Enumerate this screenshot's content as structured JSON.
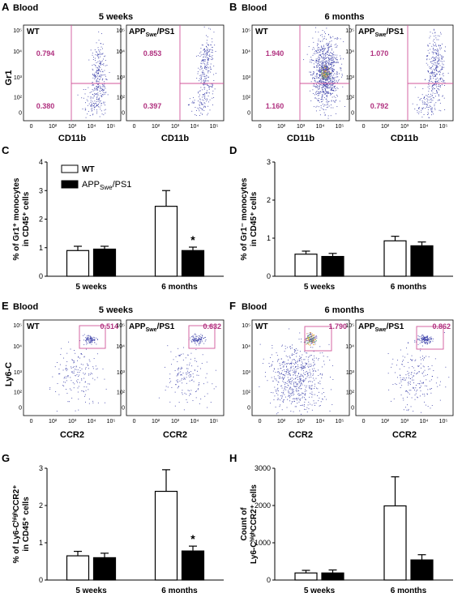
{
  "panels": {
    "A": {
      "letter": "A",
      "tissue": "Blood",
      "age": "5 weeks"
    },
    "B": {
      "letter": "B",
      "tissue": "Blood",
      "age": "6 months"
    },
    "C": {
      "letter": "C"
    },
    "D": {
      "letter": "D"
    },
    "E": {
      "letter": "E",
      "tissue": "Blood",
      "age": "5 weeks"
    },
    "F": {
      "letter": "F",
      "tissue": "Blood",
      "age": "6 months"
    },
    "G": {
      "letter": "G"
    },
    "H": {
      "letter": "H"
    }
  },
  "flow": {
    "genotypes": {
      "wt": "WT",
      "app_main": "APP",
      "app_sub": "Swe",
      "app_tail": "/PS1"
    },
    "x_ticks": [
      "0",
      "10²",
      "10³",
      "10⁴",
      "10⁵"
    ],
    "y_ticks": [
      "10⁵",
      "10⁴",
      "10³",
      "10²",
      "0"
    ],
    "gr1_xlabel": "CD11b",
    "gr1_ylabel": "Gr1",
    "ly6_xlabel": "CCR2",
    "ly6_ylabel": "Ly6-C",
    "gate_color": "#c0398f",
    "plots": [
      {
        "panel": "A",
        "genotype": "WT",
        "upper": "0.794",
        "lower": "0.380"
      },
      {
        "panel": "A",
        "genotype": "APPSwe/PS1",
        "upper": "0.853",
        "lower": "0.397"
      },
      {
        "panel": "B",
        "genotype": "WT",
        "upper": "1.940",
        "lower": "1.160"
      },
      {
        "panel": "B",
        "genotype": "APPSwe/PS1",
        "upper": "1.070",
        "lower": "0.792"
      },
      {
        "panel": "E",
        "genotype": "WT",
        "gate": "0.514"
      },
      {
        "panel": "E",
        "genotype": "APPSwe/PS1",
        "gate": "0.632"
      },
      {
        "panel": "F",
        "genotype": "WT",
        "gate": "1.790"
      },
      {
        "panel": "F",
        "genotype": "APPSwe/PS1",
        "gate": "0.862"
      }
    ]
  },
  "legend": {
    "wt": "WT",
    "app_main": "APP",
    "app_sub": "Swe",
    "app_tail": "/PS1"
  },
  "chart_data": [
    {
      "panel": "C",
      "type": "bar",
      "categories": [
        "5 weeks",
        "6 months"
      ],
      "ylabel_lines": [
        "% of Gr1⁺ monocytes",
        "in CD45⁺ cells"
      ],
      "ylim": [
        0,
        4
      ],
      "yticks": [
        "0",
        "1",
        "2",
        "3",
        "4"
      ],
      "series": [
        {
          "name": "WT",
          "values": [
            0.9,
            2.45
          ],
          "errors": [
            0.15,
            0.55
          ]
        },
        {
          "name": "APPSwe/PS1",
          "values": [
            0.95,
            0.9
          ],
          "errors": [
            0.1,
            0.12
          ]
        }
      ],
      "significance": [
        "",
        "*"
      ]
    },
    {
      "panel": "D",
      "type": "bar",
      "categories": [
        "5 weeks",
        "6 months"
      ],
      "ylabel_lines": [
        "% of Gr1⁻ monocytes",
        "in CD45⁺ cells"
      ],
      "ylim": [
        0,
        3
      ],
      "yticks": [
        "0",
        "1",
        "2",
        "3"
      ],
      "series": [
        {
          "name": "WT",
          "values": [
            0.58,
            0.93
          ],
          "errors": [
            0.08,
            0.12
          ]
        },
        {
          "name": "APPSwe/PS1",
          "values": [
            0.52,
            0.8
          ],
          "errors": [
            0.08,
            0.1
          ]
        }
      ],
      "significance": [
        "",
        ""
      ]
    },
    {
      "panel": "G",
      "type": "bar",
      "categories": [
        "5 weeks",
        "6 months"
      ],
      "ylabel_lines": [
        "% of Ly6-CʰⁱᵍʰCCR2⁺",
        "in CD45⁺ cells"
      ],
      "ylim": [
        0,
        3
      ],
      "yticks": [
        "0",
        "1",
        "2",
        "3"
      ],
      "series": [
        {
          "name": "WT",
          "values": [
            0.65,
            2.38
          ],
          "errors": [
            0.12,
            0.58
          ]
        },
        {
          "name": "APPSwe/PS1",
          "values": [
            0.6,
            0.78
          ],
          "errors": [
            0.12,
            0.13
          ]
        }
      ],
      "significance": [
        "",
        "*"
      ]
    },
    {
      "panel": "H",
      "type": "bar",
      "categories": [
        "5 weeks",
        "6 months"
      ],
      "ylabel_lines": [
        "Count of",
        "Ly6-CʰⁱᵍʰCCR2⁺ cells"
      ],
      "ylim": [
        0,
        3000
      ],
      "yticks": [
        "0",
        "1000",
        "2000",
        "3000"
      ],
      "series": [
        {
          "name": "WT",
          "values": [
            190,
            1990
          ],
          "errors": [
            70,
            780
          ]
        },
        {
          "name": "APPSwe/PS1",
          "values": [
            190,
            540
          ],
          "errors": [
            80,
            140
          ]
        }
      ],
      "significance": [
        "",
        ""
      ]
    }
  ]
}
